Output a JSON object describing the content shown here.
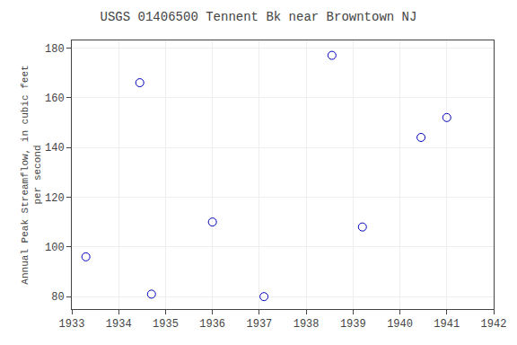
{
  "chart_data": {
    "type": "scatter",
    "title": "USGS 01406500 Tennent Bk near Browntown NJ",
    "ylabel": "Annual Peak Streamflow, in cubic feet\nper second",
    "x": [
      1933.3,
      1934.45,
      1934.7,
      1936.0,
      1937.1,
      1938.55,
      1939.2,
      1940.45,
      1941.0
    ],
    "values": [
      96,
      166,
      81,
      110,
      80,
      177,
      108,
      144,
      152
    ],
    "xlim": [
      1933,
      1942
    ],
    "ylim": [
      75,
      183
    ],
    "xticks": [
      1933,
      1934,
      1935,
      1936,
      1937,
      1938,
      1939,
      1940,
      1941,
      1942
    ],
    "yticks": [
      80,
      100,
      120,
      140,
      160,
      180
    ],
    "color": "#0000bb",
    "marker": "circle-open",
    "grid": true
  }
}
